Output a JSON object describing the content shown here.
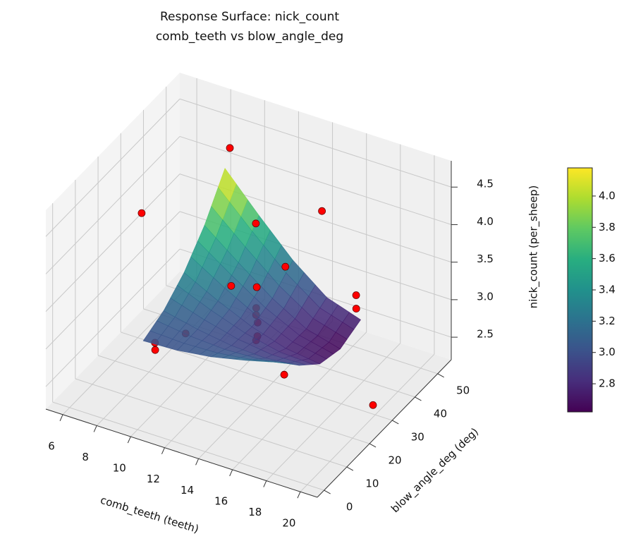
{
  "chart_data": {
    "type": "surface3d",
    "title": "Response Surface: nick_count",
    "subtitle": "comb_teeth vs blow_angle_deg",
    "xlabel": "comb_teeth (teeth)",
    "ylabel": "blow_angle_deg (deg)",
    "zlabel": "nick_count (per_sheep)",
    "xlim": [
      5,
      21
    ],
    "ylim": [
      -3,
      56
    ],
    "zlim": [
      2.2,
      4.85
    ],
    "xticks": [
      6,
      8,
      10,
      12,
      14,
      16,
      18,
      20
    ],
    "yticks": [
      0,
      10,
      20,
      30,
      40,
      50
    ],
    "zticks": [
      2.5,
      {
        "value": 3,
        "label": "3.0"
      },
      3.5,
      {
        "value": 4,
        "label": "4.0"
      },
      4.5
    ],
    "grid": true,
    "colormap": "viridis",
    "clim": [
      2.62,
      4.18
    ],
    "cticks": [
      2.8,
      {
        "value": 3,
        "label": "3.0"
      },
      3.2,
      3.4,
      3.6,
      3.8,
      {
        "value": 4,
        "label": "4.0"
      }
    ],
    "surface": {
      "x": [
        9,
        11,
        13,
        15,
        17
      ],
      "y": [
        10,
        19,
        28,
        37,
        46
      ],
      "z": [
        [
          3.0,
          3.02,
          3.08,
          3.18,
          3.3
        ],
        [
          3.12,
          3.02,
          2.95,
          2.93,
          2.98
        ],
        [
          3.35,
          3.12,
          2.92,
          2.78,
          2.72
        ],
        [
          3.7,
          3.35,
          3.02,
          2.76,
          2.64
        ],
        [
          4.18,
          3.7,
          3.25,
          2.9,
          2.75
        ]
      ]
    },
    "points": {
      "color": "#ff0000",
      "x": [
        10.2,
        8.6,
        15.6,
        12.2,
        14.1,
        17.2,
        17.3,
        11.2,
        12.4,
        12.3,
        12.6,
        13.0,
        12.6,
        12.4,
        9.6,
        8.3,
        8.3,
        14.5,
        19.8
      ],
      "y": [
        39.2,
        12.3,
        39.4,
        35.7,
        34.5,
        42.5,
        41.8,
        32.3,
        34.6,
        35.1,
        32.8,
        30.5,
        33.4,
        34.3,
        24.2,
        20.4,
        20.5,
        31.0,
        30.5
      ],
      "z": [
        4.75,
        4.6,
        4.3,
        4.0,
        3.6,
        3.2,
        3.05,
        3.2,
        3.2,
        2.9,
        2.9,
        2.9,
        2.6,
        2.5,
        2.7,
        2.6,
        2.5,
        2.3,
        2.3
      ]
    }
  }
}
